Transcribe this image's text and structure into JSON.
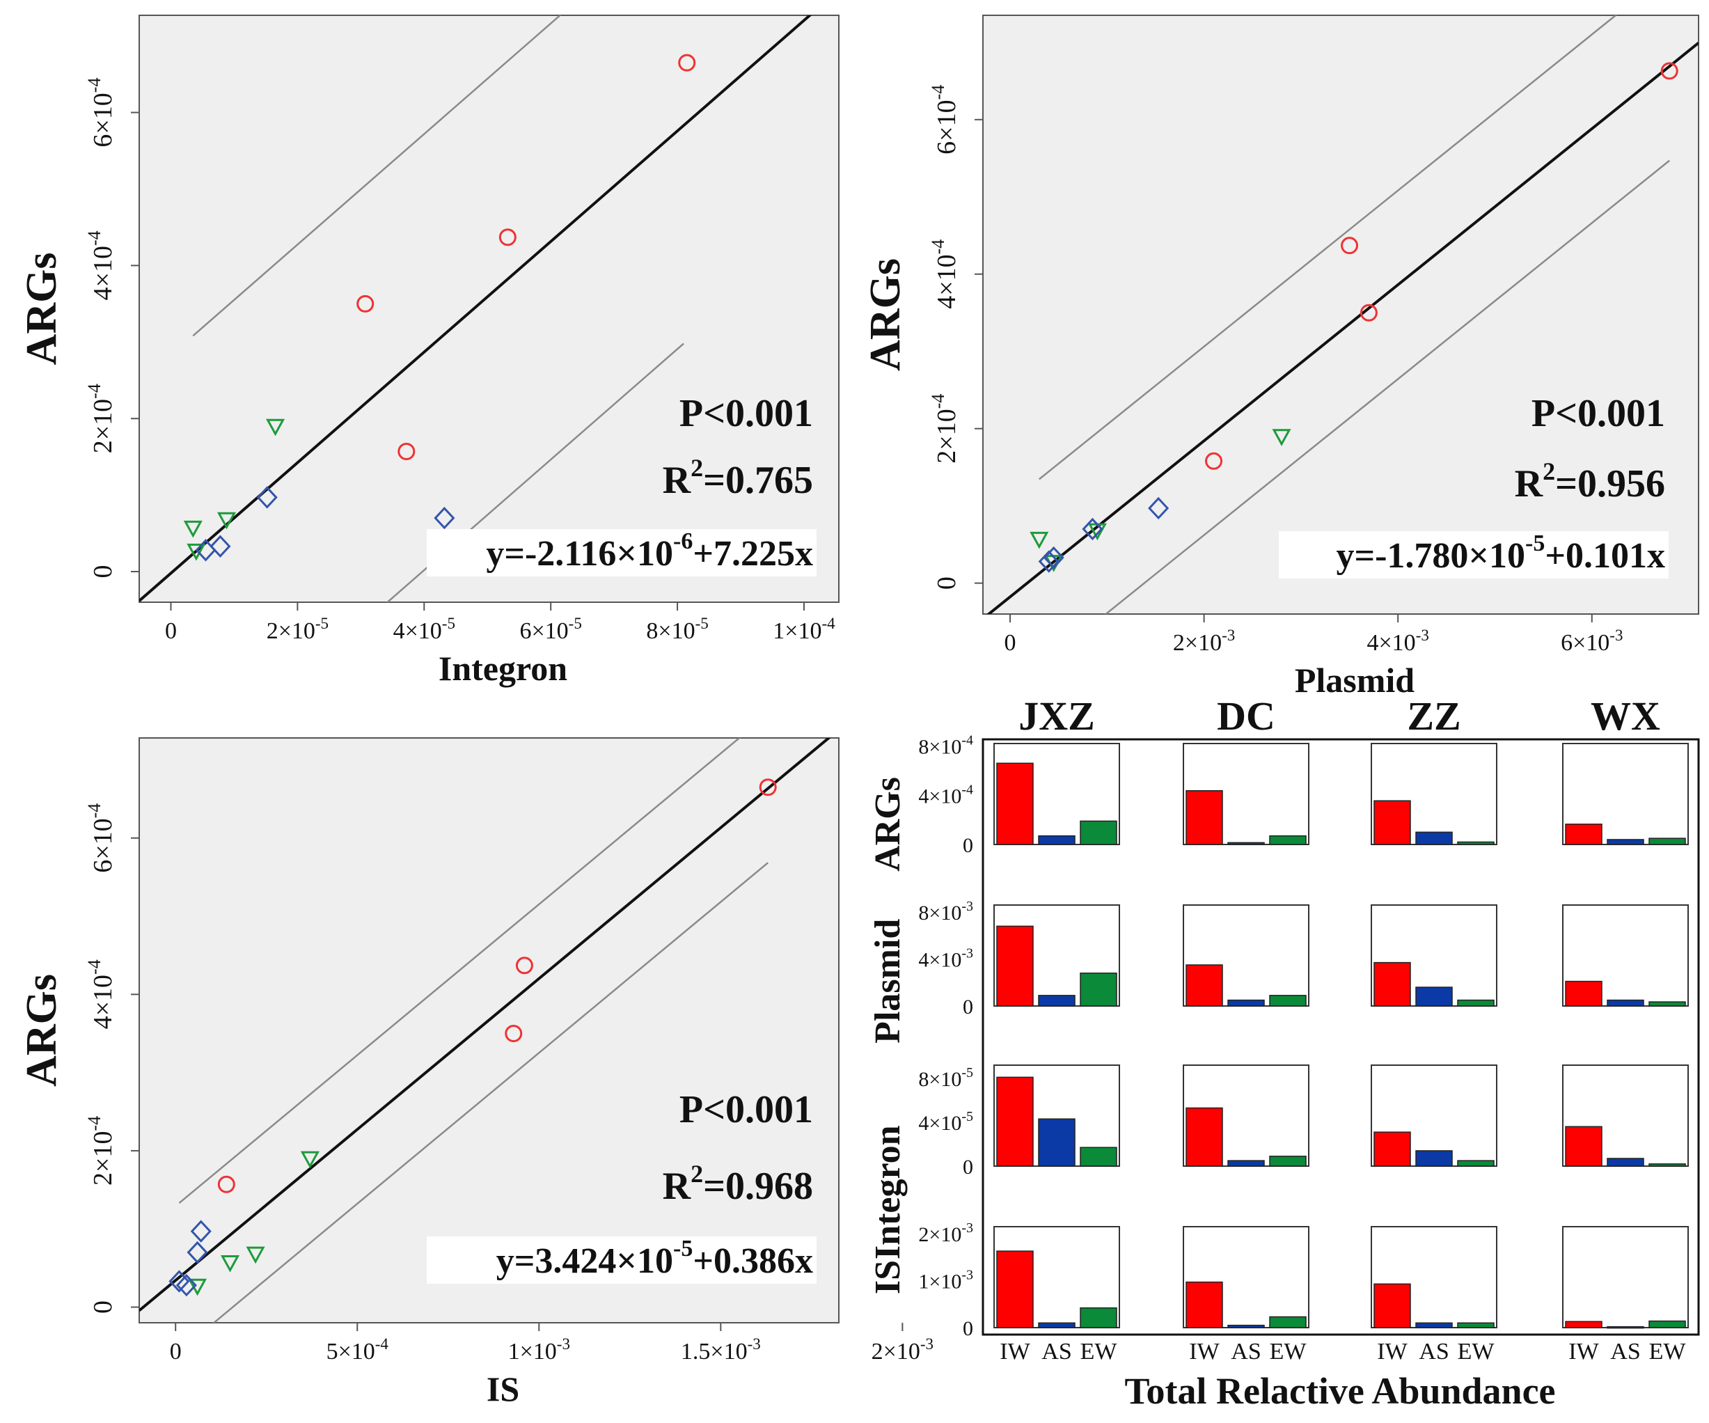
{
  "chart_data": [
    {
      "id": "integron",
      "type": "scatter",
      "xlabel": "Integron",
      "ylabel": "ARGs",
      "xlim": [
        -5e-06,
        0.0001055
      ],
      "ylim": [
        -4e-05,
        0.000727
      ],
      "xticks": [
        0,
        2e-05,
        4e-05,
        6e-05,
        8e-05,
        0.0001
      ],
      "xtick_labels": [
        {
          "m": "0",
          "e": ""
        },
        {
          "m": "2×10",
          "e": "-5"
        },
        {
          "m": "4×10",
          "e": "-5"
        },
        {
          "m": "6×10",
          "e": "-5"
        },
        {
          "m": "8×10",
          "e": "-5"
        },
        {
          "m": "1×10",
          "e": "-4"
        }
      ],
      "yticks": [
        0,
        0.0002,
        0.0004,
        0.0006
      ],
      "ytick_labels": [
        {
          "m": "0",
          "e": ""
        },
        {
          "m": "2×10",
          "e": "-4"
        },
        {
          "m": "4×10",
          "e": "-4"
        },
        {
          "m": "6×10",
          "e": "-4"
        }
      ],
      "stats": {
        "p_label": "P<0.001",
        "r2_prefix": "R",
        "r2_sup": "2",
        "r2_value": "=0.765",
        "eq_prefix": "y=-2.116×10",
        "eq_sup": "-6",
        "eq_suffix": "+7.225x"
      },
      "regression": {
        "intercept": -2.116e-06,
        "slope": 7.225,
        "x_range": [
          -5e-06,
          0.0001055
        ]
      },
      "prediction_band": {
        "offset": 0.000285,
        "x_range": [
          3.5e-06,
          8.1e-05
        ]
      },
      "series": [
        {
          "name": "IW",
          "marker": "circle",
          "color": "#ee3333",
          "points": [
            [
              8.15e-05,
              0.000665
            ],
            [
              5.32e-05,
              0.000437
            ],
            [
              3.07e-05,
              0.00035
            ],
            [
              3.72e-05,
              0.000157
            ]
          ]
        },
        {
          "name": "EW",
          "marker": "triangle-down",
          "color": "#1e9a3c",
          "points": [
            [
              1.65e-05,
              0.00019
            ],
            [
              3.5e-06,
              5.7e-05
            ],
            [
              8.8e-06,
              6.8e-05
            ],
            [
              4e-06,
              2.7e-05
            ]
          ]
        },
        {
          "name": "AS",
          "marker": "diamond",
          "color": "#3355aa",
          "points": [
            [
              1.52e-05,
              9.7e-05
            ],
            [
              4.32e-05,
              7e-05
            ],
            [
              7.8e-06,
              3.3e-05
            ],
            [
              5.5e-06,
              2.8e-05
            ]
          ]
        }
      ]
    },
    {
      "id": "plasmid",
      "type": "scatter",
      "xlabel": "Plasmid",
      "ylabel": "ARGs",
      "xlim": [
        -0.00028,
        0.0071
      ],
      "ylim": [
        -4e-05,
        0.000735
      ],
      "xticks": [
        0,
        0.002,
        0.004,
        0.006
      ],
      "xtick_labels": [
        {
          "m": "0",
          "e": ""
        },
        {
          "m": "2×10",
          "e": "-3"
        },
        {
          "m": "4×10",
          "e": "-3"
        },
        {
          "m": "6×10",
          "e": "-3"
        }
      ],
      "yticks": [
        0,
        0.0002,
        0.0004,
        0.0006
      ],
      "ytick_labels": [
        {
          "m": "0",
          "e": ""
        },
        {
          "m": "2×10",
          "e": "-4"
        },
        {
          "m": "4×10",
          "e": "-4"
        },
        {
          "m": "6×10",
          "e": "-4"
        }
      ],
      "stats": {
        "p_label": "P<0.001",
        "r2_prefix": "R",
        "r2_sup": "2",
        "r2_value": "=0.956",
        "eq_prefix": "y=-1.780×10",
        "eq_sup": "-5",
        "eq_suffix": "+0.101x"
      },
      "regression": {
        "intercept": -1.78e-05,
        "slope": 0.101,
        "x_range": [
          -0.00028,
          0.0071
        ]
      },
      "prediction_band": {
        "offset": 0.000122,
        "x_range": [
          0.0003,
          0.0068
        ]
      },
      "series": [
        {
          "name": "IW",
          "marker": "circle",
          "color": "#ee3333",
          "points": [
            [
              0.0068,
              0.000663
            ],
            [
              0.0035,
              0.000437
            ],
            [
              0.0037,
              0.00035
            ],
            [
              0.0021,
              0.000158
            ]
          ]
        },
        {
          "name": "EW",
          "marker": "triangle-down",
          "color": "#1e9a3c",
          "points": [
            [
              0.0028,
              0.00019
            ],
            [
              0.0003,
              5.7e-05
            ],
            [
              0.0009,
              6.8e-05
            ],
            [
              0.00045,
              2.7e-05
            ]
          ]
        },
        {
          "name": "AS",
          "marker": "diamond",
          "color": "#3355aa",
          "points": [
            [
              0.00153,
              9.7e-05
            ],
            [
              0.00085,
              7e-05
            ],
            [
              0.00045,
              3.3e-05
            ],
            [
              0.0004,
              2.8e-05
            ]
          ]
        }
      ]
    },
    {
      "id": "is",
      "type": "scatter",
      "xlabel": "IS",
      "ylabel": "ARGs",
      "xlim": [
        -0.0001,
        0.001825
      ],
      "ylim": [
        -2e-05,
        0.000728
      ],
      "xticks": [
        0,
        0.0005,
        0.001,
        0.0015,
        0.002
      ],
      "xtick_labels": [
        {
          "m": "0",
          "e": ""
        },
        {
          "m": "5×10",
          "e": "-4"
        },
        {
          "m": "1×10",
          "e": "-3"
        },
        {
          "m": "1.5×10",
          "e": "-3"
        },
        {
          "m": "2×10",
          "e": "-3"
        }
      ],
      "yticks": [
        0,
        0.0002,
        0.0004,
        0.0006
      ],
      "ytick_labels": [
        {
          "m": "0",
          "e": ""
        },
        {
          "m": "2×10",
          "e": "-4"
        },
        {
          "m": "4×10",
          "e": "-4"
        },
        {
          "m": "6×10",
          "e": "-4"
        }
      ],
      "stats": {
        "p_label": "P<0.001",
        "r2_prefix": "R",
        "r2_sup": "2",
        "r2_value": "=0.968",
        "eq_prefix": "y=3.424×10",
        "eq_sup": "-5",
        "eq_suffix": "+0.386x"
      },
      "regression": {
        "intercept": 3.424e-05,
        "slope": 0.386,
        "x_range": [
          -0.0001,
          0.00184
        ]
      },
      "prediction_band": {
        "offset": 9.5e-05,
        "x_range": [
          1e-05,
          0.00163
        ]
      },
      "series": [
        {
          "name": "IW",
          "marker": "circle",
          "color": "#ee3333",
          "points": [
            [
              0.00163,
              0.000665
            ],
            [
              0.00096,
              0.000437
            ],
            [
              0.00093,
              0.00035
            ],
            [
              0.00014,
              0.000157
            ]
          ]
        },
        {
          "name": "EW",
          "marker": "triangle-down",
          "color": "#1e9a3c",
          "points": [
            [
              0.00037,
              0.00019
            ],
            [
              0.00015,
              5.7e-05
            ],
            [
              0.00022,
              6.8e-05
            ],
            [
              6e-05,
              2.7e-05
            ]
          ]
        },
        {
          "name": "AS",
          "marker": "diamond",
          "color": "#3355aa",
          "points": [
            [
              7e-05,
              9.7e-05
            ],
            [
              6e-05,
              7e-05
            ],
            [
              1e-05,
              3.3e-05
            ],
            [
              3e-05,
              2.8e-05
            ]
          ]
        }
      ]
    },
    {
      "id": "abundance",
      "type": "bar",
      "title": "Total Relactive Abundance",
      "sites": [
        "JXZ",
        "DC",
        "ZZ",
        "WX"
      ],
      "categories": [
        "IW",
        "AS",
        "EW"
      ],
      "colors": [
        "#ff0000",
        "#0b3aa6",
        "#0b8a3a"
      ],
      "row_title_parts": [
        {
          "text": "IS",
          "row_span": [
            3,
            3
          ]
        },
        {
          "text": "Integron",
          "row_span": [
            1.95,
            3
          ]
        },
        {
          "text": "Plasmid",
          "row_span": [
            1,
            1.95
          ]
        },
        {
          "text": "ARGs",
          "row_span": [
            0,
            1
          ]
        }
      ],
      "rows": [
        {
          "name": "ARGs",
          "ymax": 0.00082,
          "ticks": [
            {
              "v": 0,
              "m": "0",
              "e": ""
            },
            {
              "v": 0.0004,
              "m": "4×10",
              "e": "-4"
            },
            {
              "v": 0.0008,
              "m": "8×10",
              "e": "-4"
            }
          ],
          "values": [
            [
              0.00066,
              7e-05,
              0.00019
            ],
            [
              0.000437,
              1.5e-05,
              7e-05
            ],
            [
              0.000355,
              0.0001,
              2e-05
            ],
            [
              0.000165,
              4e-05,
              5e-05
            ]
          ]
        },
        {
          "name": "Plasmid",
          "ymax": 0.0086,
          "ticks": [
            {
              "v": 0,
              "m": "0",
              "e": ""
            },
            {
              "v": 0.004,
              "m": "4×10",
              "e": "-3"
            },
            {
              "v": 0.008,
              "m": "8×10",
              "e": "-3"
            }
          ],
          "values": [
            [
              0.0068,
              0.0009,
              0.0028
            ],
            [
              0.0035,
              0.0005,
              0.0009
            ],
            [
              0.0037,
              0.0016,
              0.0005
            ],
            [
              0.0021,
              0.0005,
              0.00035
            ]
          ]
        },
        {
          "name": "Integron",
          "ymax": 9.2e-05,
          "ticks": [
            {
              "v": 0,
              "m": "0",
              "e": ""
            },
            {
              "v": 4e-05,
              "m": "4×10",
              "e": "-5"
            },
            {
              "v": 8e-05,
              "m": "8×10",
              "e": "-5"
            }
          ],
          "values": [
            [
              8.1e-05,
              4.3e-05,
              1.7e-05
            ],
            [
              5.3e-05,
              5e-06,
              9e-06
            ],
            [
              3.1e-05,
              1.4e-05,
              5e-06
            ],
            [
              3.6e-05,
              7e-06,
              2e-06
            ]
          ]
        },
        {
          "name": "IS",
          "ymax": 0.00215,
          "ticks": [
            {
              "v": 0,
              "m": "0",
              "e": ""
            },
            {
              "v": 0.001,
              "m": "1×10",
              "e": "-3"
            },
            {
              "v": 0.002,
              "m": "2×10",
              "e": "-3"
            }
          ],
          "values": [
            [
              0.00163,
              0.0001,
              0.00042
            ],
            [
              0.00097,
              5e-05,
              0.00023
            ],
            [
              0.00093,
              0.0001,
              0.0001
            ],
            [
              0.00013,
              2e-05,
              0.00014
            ]
          ]
        }
      ]
    }
  ]
}
